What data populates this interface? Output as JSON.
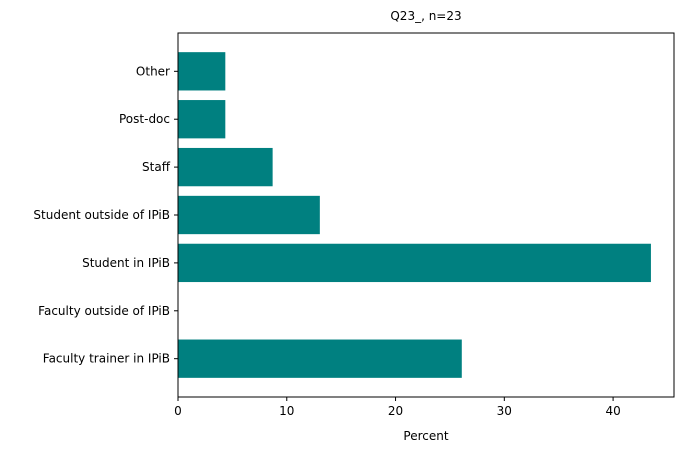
{
  "chart_data": {
    "type": "bar",
    "orientation": "horizontal",
    "title": "Q23_, n=23",
    "xlabel": "Percent",
    "ylabel": "",
    "xlim": [
      0,
      45.6
    ],
    "xticks": [
      0,
      10,
      20,
      30,
      40
    ],
    "grid": false,
    "bar_color": "#008080",
    "categories": [
      "Faculty trainer in IPiB",
      "Faculty outside of IPiB",
      "Student in IPiB",
      "Student outside of IPiB",
      "Staff",
      "Post-doc",
      "Other"
    ],
    "values": [
      26.09,
      0,
      43.48,
      13.04,
      8.7,
      4.35,
      4.35
    ]
  }
}
